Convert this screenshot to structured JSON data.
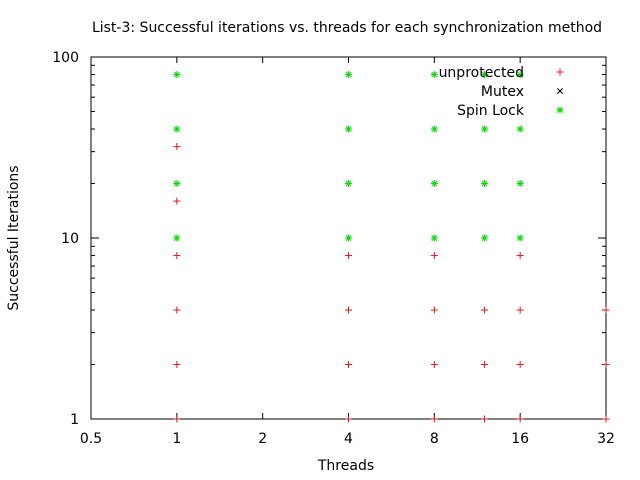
{
  "chart_data": {
    "type": "scatter",
    "title": "List-3: Successful iterations vs. threads for each synchronization method",
    "xlabel": "Threads",
    "ylabel": "Successful Iterations",
    "xscale": "log",
    "yscale": "log",
    "xlim": [
      0.5,
      32
    ],
    "ylim": [
      1,
      100
    ],
    "xticks": [
      0.5,
      1,
      2,
      4,
      8,
      16,
      32
    ],
    "xtick_labels": [
      "0.5",
      "1",
      "2",
      "4",
      "8",
      "16",
      "32"
    ],
    "yticks": [
      1,
      10,
      100
    ],
    "ytick_labels": [
      "1",
      "10",
      "100"
    ],
    "grid": false,
    "legend_position": "top-right",
    "series": [
      {
        "name": "unprotected",
        "marker": "plus",
        "color": "#e41a1c",
        "points": [
          [
            1,
            1
          ],
          [
            1,
            2
          ],
          [
            1,
            4
          ],
          [
            1,
            8
          ],
          [
            1,
            16
          ],
          [
            1,
            32
          ],
          [
            4,
            1
          ],
          [
            4,
            2
          ],
          [
            4,
            4
          ],
          [
            4,
            8
          ],
          [
            8,
            1
          ],
          [
            8,
            2
          ],
          [
            8,
            4
          ],
          [
            8,
            8
          ],
          [
            12,
            1
          ],
          [
            12,
            2
          ],
          [
            12,
            4
          ],
          [
            16,
            1
          ],
          [
            16,
            2
          ],
          [
            16,
            4
          ],
          [
            16,
            8
          ],
          [
            32,
            1
          ],
          [
            32,
            2
          ],
          [
            32,
            4
          ]
        ]
      },
      {
        "name": "Mutex",
        "marker": "cross",
        "color": "#000000",
        "points": []
      },
      {
        "name": "Spin Lock",
        "marker": "star",
        "color": "#00dd00",
        "points": [
          [
            1,
            10
          ],
          [
            1,
            20
          ],
          [
            1,
            40
          ],
          [
            1,
            80
          ],
          [
            4,
            10
          ],
          [
            4,
            20
          ],
          [
            4,
            40
          ],
          [
            4,
            80
          ],
          [
            8,
            10
          ],
          [
            8,
            20
          ],
          [
            8,
            40
          ],
          [
            8,
            80
          ],
          [
            12,
            10
          ],
          [
            12,
            20
          ],
          [
            12,
            40
          ],
          [
            12,
            80
          ],
          [
            16,
            10
          ],
          [
            16,
            20
          ],
          [
            16,
            40
          ],
          [
            16,
            80
          ]
        ]
      }
    ]
  }
}
